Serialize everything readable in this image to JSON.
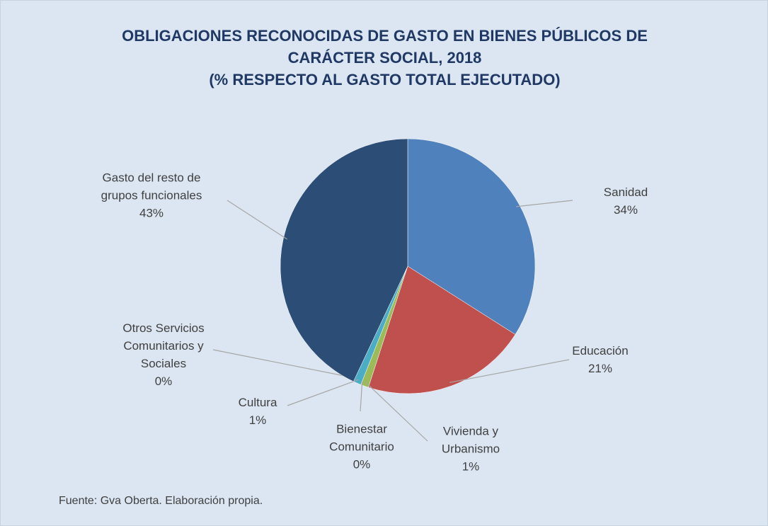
{
  "chart_data": {
    "type": "pie",
    "title": "OBLIGACIONES RECONOCIDAS DE GASTO EN BIENES PÚBLICOS DE\nCARÁCTER SOCIAL, 2018\n(% RESPECTO AL GASTO TOTAL EJECUTADO)",
    "categories": [
      "Sanidad",
      "Educación",
      "Vivienda y\nUrbanismo",
      "Bienestar\nComunitario",
      "Cultura",
      "Otros Servicios\nComunitarios y\nSociales",
      "Gasto del resto de\ngrupos funcionales"
    ],
    "values": [
      34,
      21,
      1,
      0,
      1,
      0,
      43
    ],
    "value_labels": [
      "34%",
      "21%",
      "1%",
      "0%",
      "1%",
      "0%",
      "43%"
    ],
    "colors": [
      "#4f81bd",
      "#c0504d",
      "#9bbb59",
      "#8064a2",
      "#4bacc6",
      "#f79646",
      "#2c4d75"
    ],
    "note": "Fuente: Gva Oberta. Elaboración propia."
  }
}
